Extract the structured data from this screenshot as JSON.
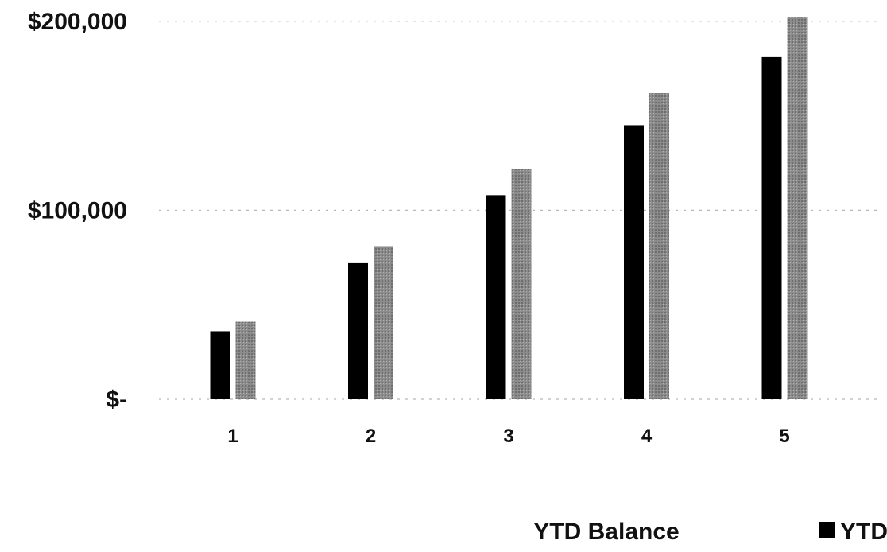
{
  "chart_data": {
    "type": "bar",
    "categories": [
      "1",
      "2",
      "3",
      "4",
      "5"
    ],
    "series": [
      {
        "values": [
          36000,
          72000,
          108000,
          145000,
          181000
        ],
        "color": "#000000"
      },
      {
        "values": [
          41000,
          81000,
          122000,
          162000,
          202000
        ],
        "color": "#8c8c8c"
      }
    ],
    "y_tick_values": [
      0,
      100000,
      200000
    ],
    "y_tick_labels": [
      "$-",
      "$100,000",
      "$200,000"
    ],
    "ylim": [
      0,
      202000
    ],
    "xlabel": "YTD Balance",
    "legend": {
      "text": "YTD",
      "placement": "bottom-right"
    },
    "grid": true
  }
}
